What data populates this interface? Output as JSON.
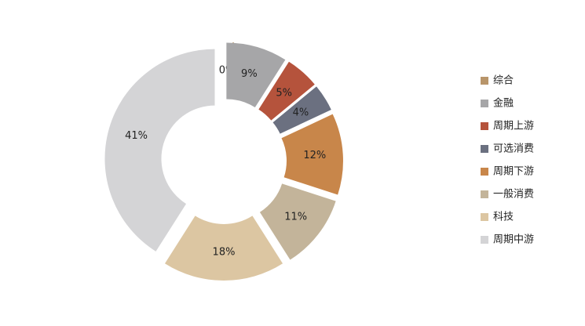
{
  "chart_data": {
    "type": "pie",
    "donut": true,
    "categories": [
      "综合",
      "金融",
      "周期上游",
      "可选消费",
      "周期下游",
      "一般消费",
      "科技",
      "周期中游"
    ],
    "values": [
      0,
      9,
      5,
      4,
      12,
      11,
      18,
      41
    ],
    "value_labels": [
      "0%",
      "9%",
      "5%",
      "4%",
      "12%",
      "11%",
      "18%",
      "41%"
    ],
    "colors": [
      "#b8956a",
      "#a6a6a8",
      "#b5533c",
      "#6b7080",
      "#c8864a",
      "#c3b49a",
      "#dcc6a2",
      "#d4d4d6"
    ],
    "legend": "right"
  }
}
